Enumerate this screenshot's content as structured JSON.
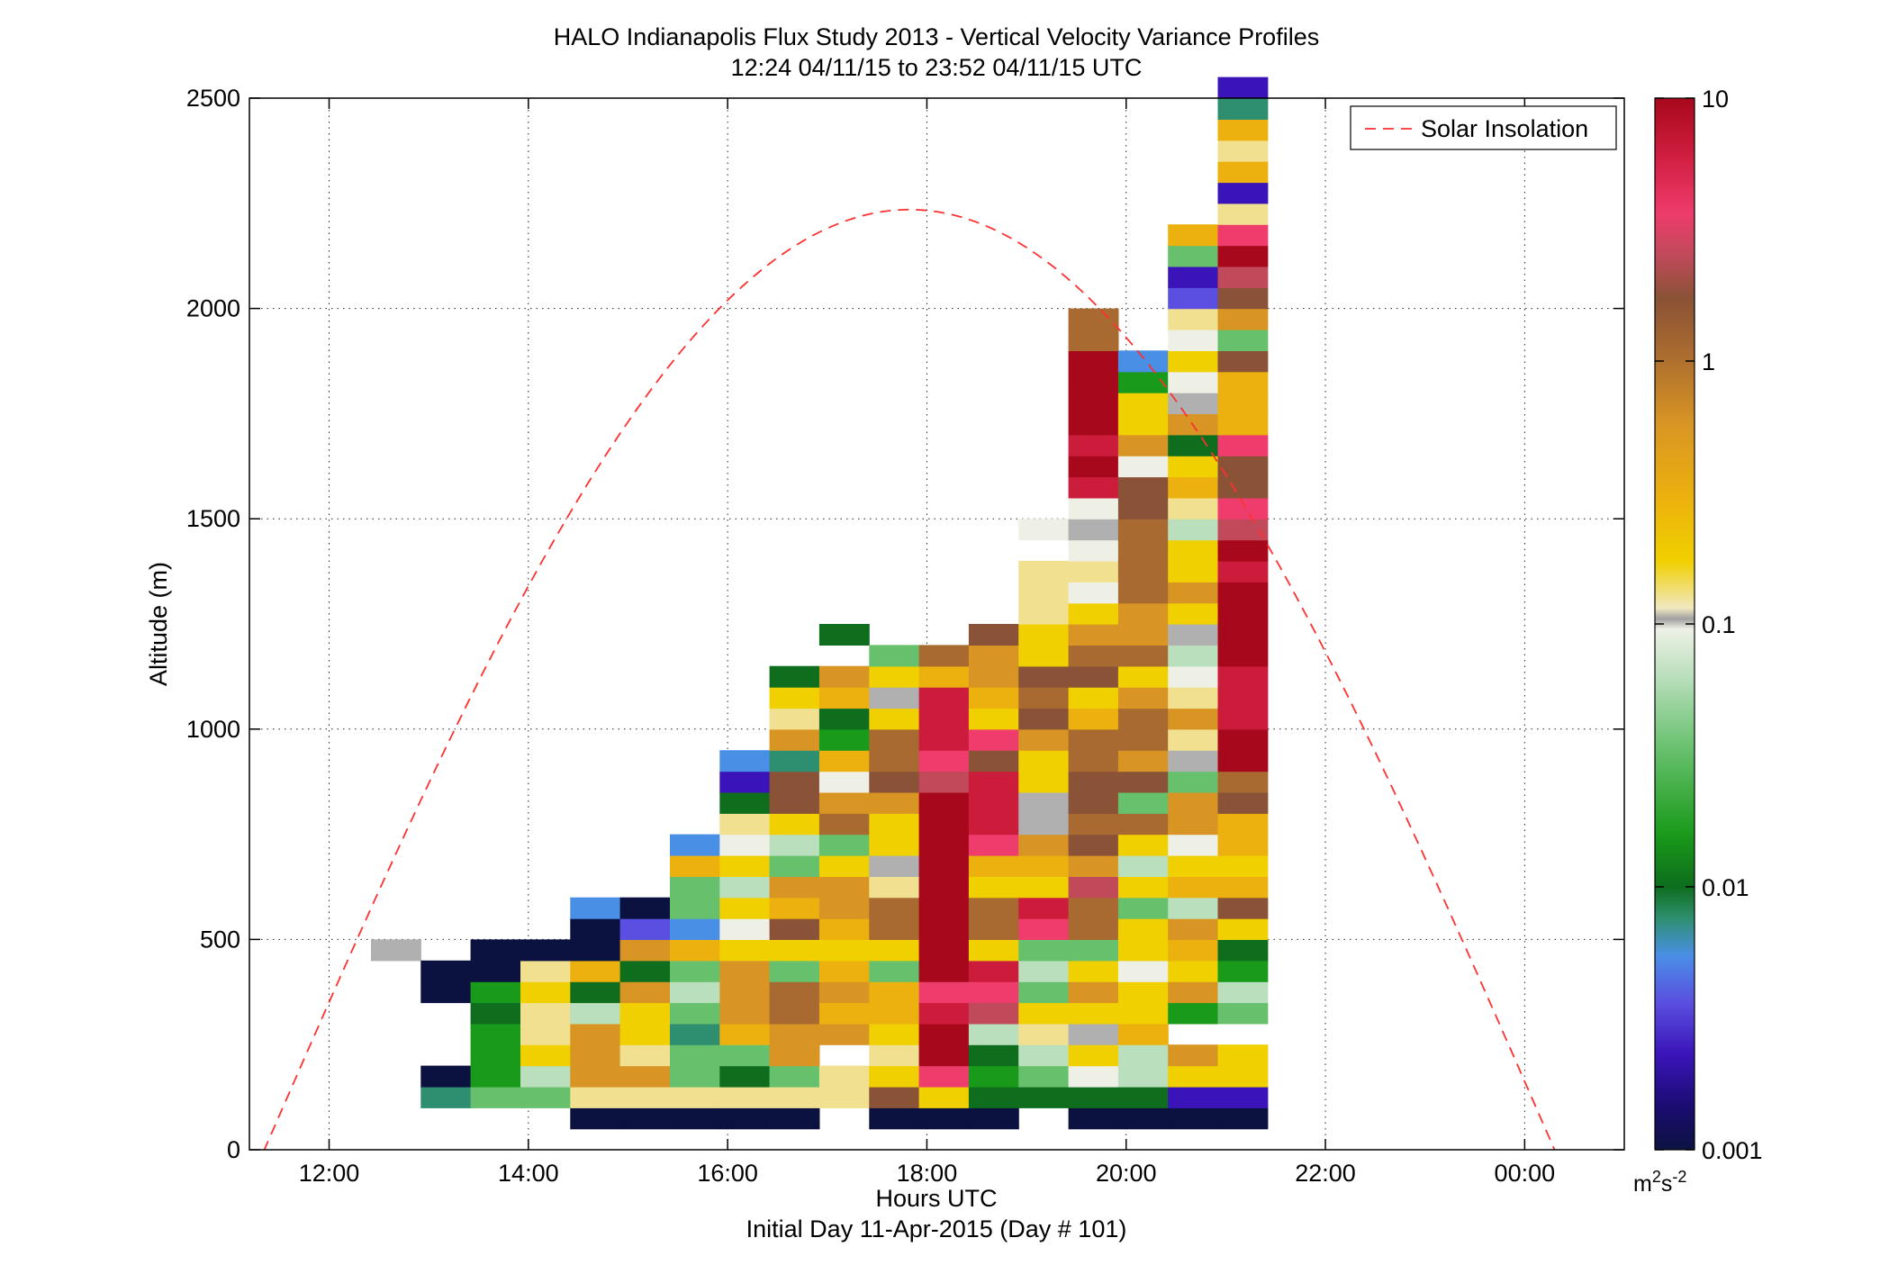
{
  "chart_data": {
    "type": "heatmap",
    "title": "HALO Indianapolis Flux Study 2013 - Vertical Velocity Variance Profiles",
    "subtitle": "12:24 04/11/15 to 23:52 04/11/15  UTC",
    "xlabel": "Hours UTC",
    "xlabel2": "Initial Day 11-Apr-2015 (Day # 101)",
    "ylabel": "Altitude (m)",
    "xlim": [
      11.2,
      25.0
    ],
    "ylim": [
      0,
      2500
    ],
    "x_ticks": [
      12,
      14,
      16,
      18,
      20,
      22,
      24
    ],
    "x_tick_labels": [
      "12:00",
      "14:00",
      "16:00",
      "18:00",
      "20:00",
      "22:00",
      "00:00"
    ],
    "y_ticks": [
      0,
      500,
      1000,
      1500,
      2000,
      2500
    ],
    "y_tick_labels": [
      "0",
      "500",
      "1000",
      "1500",
      "2000",
      "2500"
    ],
    "grid": true,
    "legend": {
      "position": "top-right",
      "entries": [
        "Solar Insolation"
      ]
    },
    "colorbar": {
      "scale": "log",
      "range": [
        0.001,
        10
      ],
      "tick_values": [
        0.001,
        0.01,
        0.1,
        1,
        10
      ],
      "tick_labels": [
        "0.001",
        "0.01",
        "0.1",
        "1",
        "10"
      ],
      "unit_base": "m",
      "unit_sup1": "2",
      "unit_mid": "s",
      "unit_sup2": "-2"
    },
    "colors": {
      "solar_line": "#ff3030",
      "tiers": [
        "#0c1240",
        "#3a14b8",
        "#5a4fe0",
        "#4a8fe6",
        "#2e8f70",
        "#0e6e1e",
        "#1a9a1a",
        "#66c06c",
        "#b9dfbc",
        "#eef0e6",
        "#b0b0b0",
        "#f0e090",
        "#f0d000",
        "#ecb10e",
        "#d99524",
        "#a86a30",
        "#8a5236",
        "#c04a5a",
        "#ee3c6c",
        "#cc1c3c",
        "#a8081c"
      ]
    },
    "time_bin_hours": 0.5,
    "altitude_bin_m": 50,
    "first_bin_center_hour": 12.67,
    "first_bin_center_alt_m": 75,
    "columns_note_bottom_row_first": true,
    "cells": [
      [
        -1,
        -1,
        -1,
        -1,
        -1,
        -1,
        -1,
        -1,
        10
      ],
      [
        -1,
        4,
        0,
        -1,
        -1,
        -1,
        0,
        0
      ],
      [
        -1,
        7,
        6,
        6,
        6,
        5,
        6,
        0,
        0
      ],
      [
        -1,
        7,
        8,
        12,
        11,
        11,
        12,
        11,
        0
      ],
      [
        0,
        11,
        14,
        14,
        14,
        8,
        5,
        13,
        0,
        0,
        3
      ],
      [
        0,
        11,
        14,
        11,
        12,
        12,
        14,
        5,
        14,
        2,
        0
      ],
      [
        0,
        11,
        7,
        7,
        4,
        7,
        8,
        7,
        13,
        3,
        7,
        7,
        13,
        3
      ],
      [
        0,
        11,
        5,
        7,
        13,
        14,
        14,
        14,
        12,
        9,
        12,
        8,
        12,
        9,
        11,
        5,
        1,
        3
      ],
      [
        0,
        11,
        7,
        14,
        14,
        15,
        15,
        7,
        12,
        16,
        13,
        14,
        7,
        8,
        12,
        16,
        16,
        4,
        14,
        11,
        12,
        5
      ],
      [
        -1,
        11,
        11,
        -1,
        14,
        13,
        14,
        13,
        12,
        13,
        14,
        14,
        12,
        7,
        15,
        14,
        9,
        13,
        6,
        5,
        13,
        14,
        -1,
        5
      ],
      [
        0,
        16,
        12,
        11,
        12,
        13,
        13,
        7,
        12,
        15,
        15,
        11,
        10,
        12,
        12,
        14,
        16,
        15,
        15,
        12,
        10,
        12,
        7
      ],
      [
        0,
        12,
        18,
        20,
        20,
        19,
        18,
        20,
        20,
        20,
        20,
        20,
        20,
        20,
        20,
        20,
        17,
        18,
        19,
        19,
        19,
        13,
        15
      ],
      [
        0,
        5,
        6,
        5,
        8,
        17,
        18,
        19,
        12,
        15,
        15,
        12,
        13,
        18,
        19,
        19,
        19,
        16,
        18,
        12,
        13,
        14,
        14,
        16
      ],
      [
        -1,
        5,
        7,
        8,
        11,
        12,
        7,
        8,
        7,
        18,
        19,
        12,
        13,
        14,
        10,
        10,
        12,
        12,
        14,
        16,
        15,
        16,
        12,
        12,
        11,
        11,
        11,
        -1,
        9
      ],
      [
        0,
        5,
        9,
        12,
        10,
        12,
        14,
        12,
        7,
        15,
        15,
        17,
        14,
        16,
        15,
        16,
        16,
        15,
        15,
        13,
        12,
        16,
        15,
        14,
        12,
        9,
        11,
        9,
        10,
        9,
        19,
        20,
        19,
        20,
        20,
        20,
        20,
        15,
        15
      ],
      [
        0,
        5,
        8,
        8,
        13,
        12,
        12,
        9,
        12,
        12,
        7,
        12,
        8,
        12,
        15,
        7,
        16,
        14,
        15,
        15,
        14,
        12,
        15,
        14,
        14,
        15,
        15,
        15,
        15,
        16,
        16,
        9,
        14,
        12,
        12,
        6,
        3,
        -1
      ],
      [
        0,
        1,
        12,
        14,
        -1,
        6,
        14,
        12,
        13,
        14,
        8,
        13,
        12,
        9,
        14,
        14,
        7,
        10,
        11,
        14,
        11,
        9,
        8,
        10,
        12,
        14,
        12,
        12,
        8,
        11,
        13,
        12,
        5,
        14,
        10,
        9,
        12,
        9,
        11,
        2,
        1,
        7,
        13
      ],
      [
        0,
        1,
        12,
        12,
        -1,
        7,
        8,
        6,
        5,
        12,
        16,
        13,
        12,
        13,
        13,
        16,
        15,
        20,
        20,
        19,
        19,
        19,
        20,
        20,
        20,
        20,
        19,
        20,
        17,
        18,
        16,
        16,
        18,
        13,
        13,
        13,
        16,
        7,
        14,
        16,
        17,
        20,
        18,
        11,
        1,
        13,
        11,
        13,
        4,
        1
      ]
    ]
  }
}
